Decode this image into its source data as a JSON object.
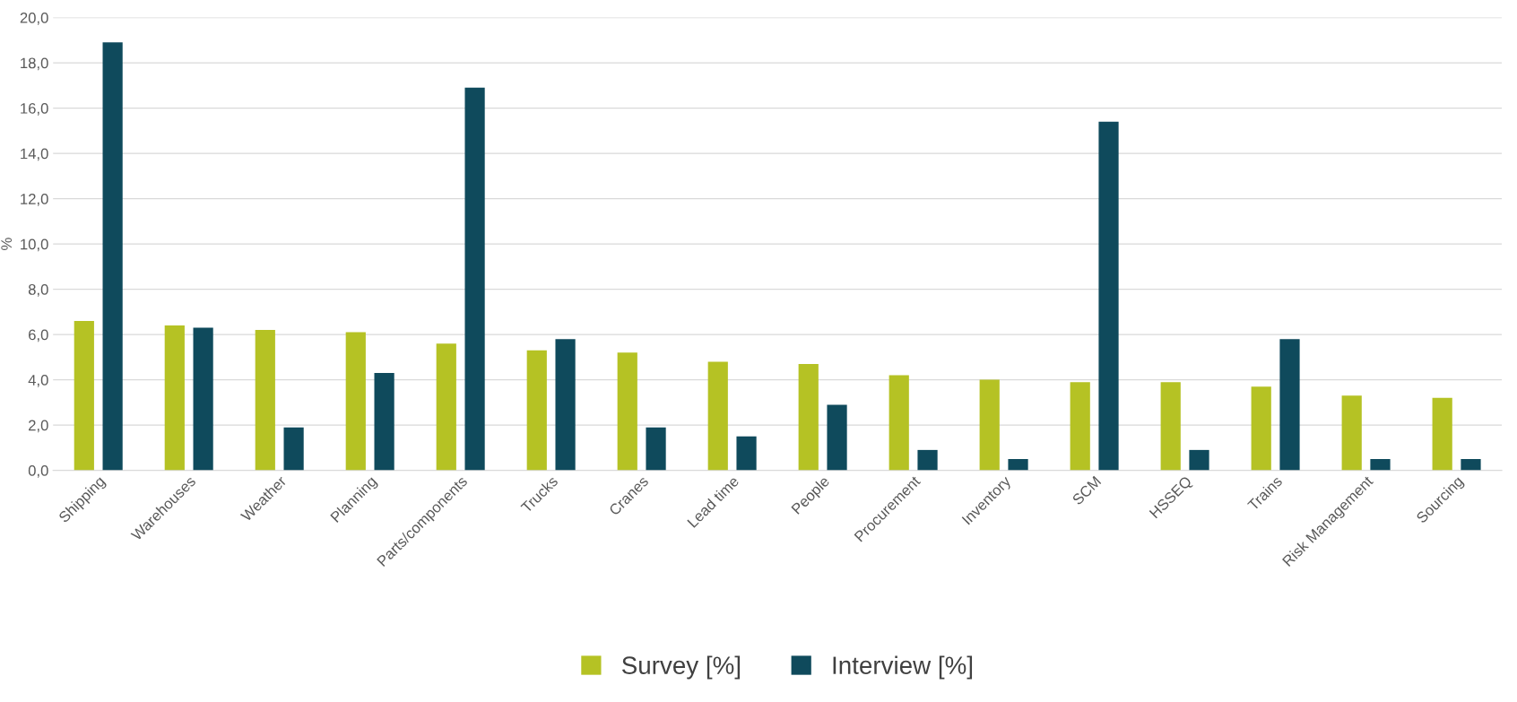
{
  "chart_data": {
    "type": "bar",
    "ylabel": "%",
    "categories": [
      "Shipping",
      "Warehouses",
      "Weather",
      "Planning",
      "Parts/components",
      "Trucks",
      "Cranes",
      "Lead time",
      "People",
      "Procurement",
      "Inventory",
      "SCM",
      "HSSEQ",
      "Trains",
      "Risk Management",
      "Sourcing"
    ],
    "series": [
      {
        "name": "Survey [%]",
        "color": "#b5c224",
        "values": [
          6.6,
          6.4,
          6.2,
          6.1,
          5.6,
          5.3,
          5.2,
          4.8,
          4.7,
          4.2,
          4.0,
          3.9,
          3.9,
          3.7,
          3.3,
          3.2
        ]
      },
      {
        "name": "Interview [%]",
        "color": "#0f4a5c",
        "values": [
          18.9,
          6.3,
          1.9,
          4.3,
          16.9,
          5.8,
          1.9,
          1.5,
          2.9,
          0.9,
          0.5,
          15.4,
          0.9,
          5.8,
          0.5,
          0.5
        ]
      }
    ],
    "ylim": [
      0,
      20
    ],
    "yticks": [
      {
        "value": 0,
        "label": "0,0"
      },
      {
        "value": 2,
        "label": "2,0"
      },
      {
        "value": 4,
        "label": "4,0"
      },
      {
        "value": 6,
        "label": "6,0"
      },
      {
        "value": 8,
        "label": "8,0"
      },
      {
        "value": 10,
        "label": "10,0"
      },
      {
        "value": 12,
        "label": "12,0"
      },
      {
        "value": 14,
        "label": "14,0"
      },
      {
        "value": 16,
        "label": "16,0"
      },
      {
        "value": 18,
        "label": "18,0"
      },
      {
        "value": 20,
        "label": "20,0"
      }
    ],
    "grid": "y",
    "legend": "bottom"
  }
}
